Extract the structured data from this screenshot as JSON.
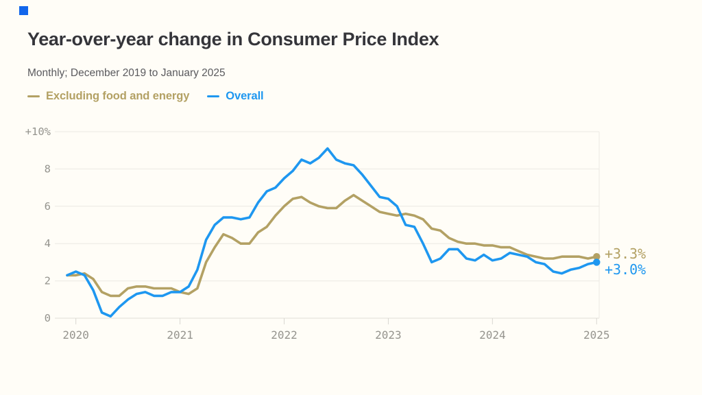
{
  "brand": {
    "logo_color": "#1266eb"
  },
  "chart_data": {
    "type": "line",
    "title": "Year-over-year change in Consumer Price Index",
    "subtitle": "Monthly; December 2019 to January 2025",
    "x_start": "December 2019",
    "x_end": "January 2025",
    "x_interval": "monthly",
    "x_tick_labels": [
      "2020",
      "2021",
      "2022",
      "2023",
      "2024",
      "2025"
    ],
    "y_ticks": [
      10,
      8,
      6,
      4,
      2,
      0
    ],
    "y_tick_labels": [
      "+10%",
      "8",
      "6",
      "4",
      "2",
      "0"
    ],
    "ylim": [
      0,
      10
    ],
    "grid": true,
    "legend_position": "top-left",
    "axis_color": "#95948e",
    "grid_color": "#ebe9e3",
    "zero_line_color": "#e0ded7",
    "tick_color": "#d9d7d1",
    "series": [
      {
        "name": "Excluding food and energy",
        "color": "#b3a164",
        "end_label": "+3.3%",
        "values": [
          2.3,
          2.3,
          2.4,
          2.1,
          1.4,
          1.2,
          1.2,
          1.6,
          1.7,
          1.7,
          1.6,
          1.6,
          1.6,
          1.4,
          1.3,
          1.6,
          3.0,
          3.8,
          4.5,
          4.3,
          4.0,
          4.0,
          4.6,
          4.9,
          5.5,
          6.0,
          6.4,
          6.5,
          6.2,
          6.0,
          5.9,
          5.9,
          6.3,
          6.6,
          6.3,
          6.0,
          5.7,
          5.6,
          5.5,
          5.6,
          5.5,
          5.3,
          4.8,
          4.7,
          4.3,
          4.1,
          4.0,
          4.0,
          3.9,
          3.9,
          3.8,
          3.8,
          3.6,
          3.4,
          3.3,
          3.2,
          3.2,
          3.3,
          3.3,
          3.3,
          3.2,
          3.3
        ]
      },
      {
        "name": "Overall",
        "color": "#1e97f0",
        "end_label": "+3.0%",
        "values": [
          2.3,
          2.5,
          2.3,
          1.5,
          0.3,
          0.1,
          0.6,
          1.0,
          1.3,
          1.4,
          1.2,
          1.2,
          1.4,
          1.4,
          1.7,
          2.6,
          4.2,
          5.0,
          5.4,
          5.4,
          5.3,
          5.4,
          6.2,
          6.8,
          7.0,
          7.5,
          7.9,
          8.5,
          8.3,
          8.6,
          9.1,
          8.5,
          8.3,
          8.2,
          7.7,
          7.1,
          6.5,
          6.4,
          6.0,
          5.0,
          4.9,
          4.0,
          3.0,
          3.2,
          3.7,
          3.7,
          3.2,
          3.1,
          3.4,
          3.1,
          3.2,
          3.5,
          3.4,
          3.3,
          3.0,
          2.9,
          2.5,
          2.4,
          2.6,
          2.7,
          2.9,
          3.0
        ]
      }
    ]
  }
}
